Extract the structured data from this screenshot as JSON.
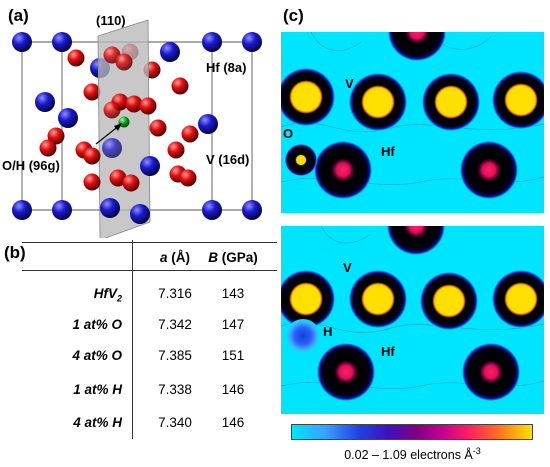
{
  "panels": {
    "a": {
      "label": "(a)",
      "plane_label": "(110)",
      "hf_site": "Hf (8a)",
      "v_site": "V (16d)",
      "oh_site": "O/H (96g)"
    },
    "b": {
      "label": "(b)",
      "table": {
        "headers": {
          "a_symbol": "a",
          "a_unit": "(Å)",
          "b_symbol": "B",
          "b_unit": "(GPa)"
        },
        "rows": [
          {
            "base": "HfV",
            "sub": "2",
            "a": "7.316",
            "B": "143"
          },
          {
            "base": "1 at% O",
            "sub": "",
            "a": "7.342",
            "B": "147"
          },
          {
            "base": "4 at% O",
            "sub": "",
            "a": "7.385",
            "B": "151"
          },
          {
            "base": "1 at% H",
            "sub": "",
            "a": "7.338",
            "B": "146"
          },
          {
            "base": "4 at% H",
            "sub": "",
            "a": "7.340",
            "B": "146"
          }
        ]
      }
    },
    "c": {
      "label": "(c)",
      "top": {
        "v": "V",
        "o": "O",
        "hf": "Hf"
      },
      "bottom": {
        "v": "V",
        "h": "H",
        "hf": "Hf"
      },
      "colorbar_text": "0.02 – 1.09 electrons Å",
      "colorbar_exp": "-3"
    }
  },
  "colors": {
    "hf_atom": "#1a1ad0",
    "v_atom": "#e01010",
    "oh_atom": "#10a020",
    "map_background": "#00e5ff",
    "v_density": "#ffe000",
    "hf_density": "#e0105a",
    "o_density": "#ffe000",
    "h_density": "#1840d0"
  }
}
